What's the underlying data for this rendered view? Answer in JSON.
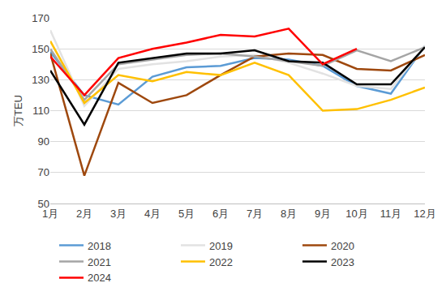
{
  "chart_data": {
    "type": "line",
    "y_label": "万TEU",
    "categories": [
      "1月",
      "2月",
      "3月",
      "4月",
      "5月",
      "6月",
      "7月",
      "8月",
      "9月",
      "10月",
      "11月",
      "12月"
    ],
    "series": [
      {
        "name": "2018",
        "color": "#5B9BD5",
        "values": [
          148,
          120,
          114,
          132,
          138,
          139,
          144,
          143,
          139,
          126,
          121,
          152
        ]
      },
      {
        "name": "2019",
        "color": "#E2E2E2",
        "values": [
          162,
          113,
          137,
          140,
          142,
          145,
          146,
          141,
          134,
          126,
          124,
          152
        ]
      },
      {
        "name": "2020",
        "color": "#9E480E",
        "values": [
          147,
          68,
          128,
          115,
          120,
          133,
          145,
          147,
          146,
          137,
          136,
          146
        ]
      },
      {
        "name": "2021",
        "color": "#A5A5A5",
        "values": [
          150,
          117,
          140,
          143,
          146,
          147,
          145,
          142,
          139,
          149,
          142,
          151
        ]
      },
      {
        "name": "2022",
        "color": "#FFC000",
        "values": [
          155,
          115,
          133,
          129,
          135,
          133,
          141,
          133,
          110,
          111,
          117,
          125
        ]
      },
      {
        "name": "2023",
        "color": "#000000",
        "values": [
          136,
          101,
          141,
          144,
          147,
          147,
          149,
          142,
          141,
          127,
          127,
          151
        ]
      },
      {
        "name": "2024",
        "color": "#FF0000",
        "values": [
          145,
          120,
          144,
          150,
          154,
          159,
          158,
          163,
          140,
          150,
          null,
          null
        ]
      }
    ],
    "ylim": [
      50,
      170
    ],
    "yticks": [
      50,
      70,
      90,
      110,
      130,
      150,
      170
    ],
    "grid": true,
    "legend": "bottom"
  }
}
